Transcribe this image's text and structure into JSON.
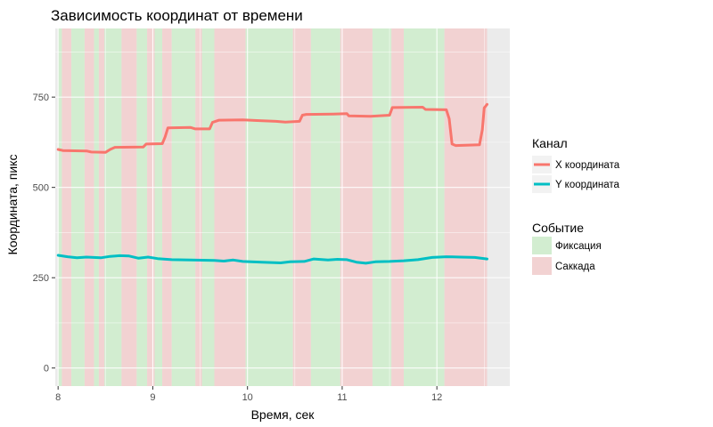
{
  "chart_data": {
    "type": "line",
    "title": "Зависимость координат от времени",
    "xlabel": "Время, сек",
    "ylabel": "Координата, пикс",
    "xlim": [
      7.97,
      12.77
    ],
    "ylim": [
      -50,
      940
    ],
    "x_ticks": [
      8,
      9,
      10,
      11,
      12
    ],
    "y_ticks": [
      0,
      250,
      500,
      750
    ],
    "y_minor_ticks": [
      125,
      375,
      625,
      875
    ],
    "x_minor_ticks": [
      8.5,
      9.5,
      10.5,
      11.5,
      12.5
    ],
    "panel_background": "#ebebeb",
    "grid_color": "#ffffff",
    "series": [
      {
        "name": "X координата",
        "color": "#f8766d",
        "points": [
          [
            8.0,
            605
          ],
          [
            8.05,
            602
          ],
          [
            8.3,
            601
          ],
          [
            8.35,
            598
          ],
          [
            8.5,
            597
          ],
          [
            8.55,
            605
          ],
          [
            8.6,
            611
          ],
          [
            8.9,
            612
          ],
          [
            8.93,
            620
          ],
          [
            9.1,
            621
          ],
          [
            9.13,
            640
          ],
          [
            9.16,
            665
          ],
          [
            9.4,
            666
          ],
          [
            9.45,
            662
          ],
          [
            9.6,
            662
          ],
          [
            9.63,
            680
          ],
          [
            9.7,
            686
          ],
          [
            9.95,
            687
          ],
          [
            10.1,
            685
          ],
          [
            10.3,
            683
          ],
          [
            10.4,
            681
          ],
          [
            10.55,
            683
          ],
          [
            10.58,
            700
          ],
          [
            10.62,
            702
          ],
          [
            10.9,
            703
          ],
          [
            11.05,
            704
          ],
          [
            11.07,
            698
          ],
          [
            11.3,
            697
          ],
          [
            11.5,
            700
          ],
          [
            11.53,
            721
          ],
          [
            11.85,
            722
          ],
          [
            11.88,
            716
          ],
          [
            12.1,
            715
          ],
          [
            12.13,
            690
          ],
          [
            12.16,
            620
          ],
          [
            12.2,
            616
          ],
          [
            12.45,
            618
          ],
          [
            12.48,
            660
          ],
          [
            12.5,
            720
          ],
          [
            12.53,
            730
          ]
        ]
      },
      {
        "name": "Y координата",
        "color": "#00bfc4",
        "points": [
          [
            8.0,
            312
          ],
          [
            8.1,
            308
          ],
          [
            8.2,
            305
          ],
          [
            8.3,
            307
          ],
          [
            8.45,
            305
          ],
          [
            8.55,
            309
          ],
          [
            8.65,
            311
          ],
          [
            8.75,
            310
          ],
          [
            8.85,
            304
          ],
          [
            8.95,
            307
          ],
          [
            9.05,
            303
          ],
          [
            9.2,
            300
          ],
          [
            9.4,
            299
          ],
          [
            9.65,
            298
          ],
          [
            9.75,
            296
          ],
          [
            9.85,
            299
          ],
          [
            9.95,
            295
          ],
          [
            10.15,
            293
          ],
          [
            10.35,
            291
          ],
          [
            10.45,
            294
          ],
          [
            10.6,
            295
          ],
          [
            10.7,
            302
          ],
          [
            10.85,
            299
          ],
          [
            10.95,
            301
          ],
          [
            11.05,
            300
          ],
          [
            11.15,
            293
          ],
          [
            11.25,
            290
          ],
          [
            11.35,
            294
          ],
          [
            11.5,
            295
          ],
          [
            11.65,
            297
          ],
          [
            11.8,
            300
          ],
          [
            11.95,
            306
          ],
          [
            12.1,
            308
          ],
          [
            12.25,
            307
          ],
          [
            12.4,
            306
          ],
          [
            12.53,
            302
          ]
        ]
      }
    ],
    "events": {
      "legend_title": "Событие",
      "categories": [
        {
          "name": "Фиксация",
          "color": "#d2edd0"
        },
        {
          "name": "Саккада",
          "color": "#f2d2d2"
        }
      ],
      "intervals": [
        {
          "start": 8.0,
          "end": 8.04,
          "type": "Фиксация"
        },
        {
          "start": 8.04,
          "end": 8.14,
          "type": "Саккада"
        },
        {
          "start": 8.14,
          "end": 8.28,
          "type": "Фиксация"
        },
        {
          "start": 8.28,
          "end": 8.38,
          "type": "Саккада"
        },
        {
          "start": 8.38,
          "end": 8.43,
          "type": "Фиксация"
        },
        {
          "start": 8.43,
          "end": 8.49,
          "type": "Саккада"
        },
        {
          "start": 8.49,
          "end": 8.67,
          "type": "Фиксация"
        },
        {
          "start": 8.67,
          "end": 8.83,
          "type": "Саккада"
        },
        {
          "start": 8.83,
          "end": 8.94,
          "type": "Фиксация"
        },
        {
          "start": 8.94,
          "end": 9.02,
          "type": "Саккада"
        },
        {
          "start": 9.02,
          "end": 9.1,
          "type": "Фиксация"
        },
        {
          "start": 9.1,
          "end": 9.2,
          "type": "Саккада"
        },
        {
          "start": 9.2,
          "end": 9.45,
          "type": "Фиксация"
        },
        {
          "start": 9.45,
          "end": 9.52,
          "type": "Саккада"
        },
        {
          "start": 9.52,
          "end": 9.65,
          "type": "Фиксация"
        },
        {
          "start": 9.65,
          "end": 9.98,
          "type": "Саккада"
        },
        {
          "start": 9.98,
          "end": 10.48,
          "type": "Фиксация"
        },
        {
          "start": 10.48,
          "end": 10.67,
          "type": "Саккада"
        },
        {
          "start": 10.67,
          "end": 10.98,
          "type": "Фиксация"
        },
        {
          "start": 10.98,
          "end": 11.32,
          "type": "Саккада"
        },
        {
          "start": 11.32,
          "end": 11.52,
          "type": "Фиксация"
        },
        {
          "start": 11.52,
          "end": 11.65,
          "type": "Саккада"
        },
        {
          "start": 11.65,
          "end": 12.08,
          "type": "Фиксация"
        },
        {
          "start": 12.08,
          "end": 12.53,
          "type": "Саккада"
        }
      ]
    },
    "legend": {
      "title": "Канал",
      "placement": "right"
    }
  }
}
